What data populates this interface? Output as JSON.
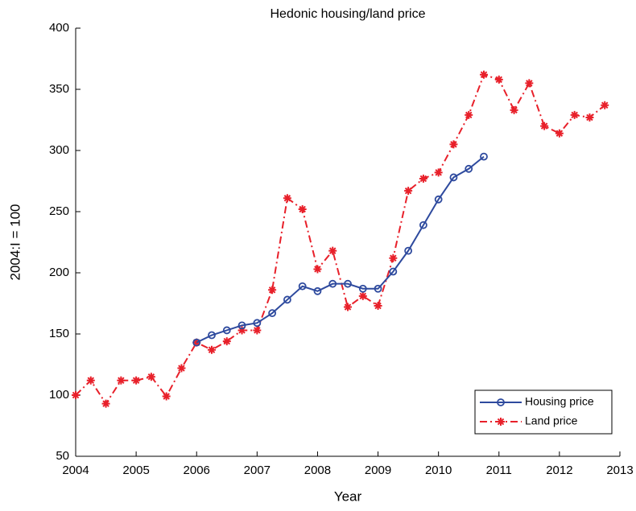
{
  "chart_data": {
    "type": "line",
    "title": "Hedonic housing/land price",
    "x_label": "Year",
    "y_label": "2004:I = 100",
    "xlim": [
      2004,
      2013
    ],
    "xticks": [
      2004,
      2005,
      2006,
      2007,
      2008,
      2009,
      2010,
      2011,
      2012,
      2013
    ],
    "ylim": [
      50,
      400
    ],
    "yticks": [
      50,
      100,
      150,
      200,
      250,
      300,
      350,
      400
    ],
    "legend": "lower right",
    "series": [
      {
        "name": "Housing price",
        "color": "#2e4a9e",
        "marker": "circle",
        "dash": "solid",
        "x": [
          2006,
          2006.25,
          2006.5,
          2006.75,
          2007,
          2007.25,
          2007.5,
          2007.75,
          2008,
          2008.25,
          2008.5,
          2008.75,
          2009,
          2009.25,
          2009.5,
          2009.75,
          2010,
          2010.25,
          2010.5,
          2010.75
        ],
        "values": [
          143,
          149,
          153,
          157,
          159,
          167,
          178,
          189,
          185,
          191,
          191,
          187,
          187,
          201,
          218,
          239,
          260,
          278,
          285,
          295
        ]
      },
      {
        "name": "Land price",
        "color": "#e8202a",
        "marker": "asterisk",
        "dash": "dashdot",
        "x": [
          2004,
          2004.25,
          2004.5,
          2004.75,
          2005,
          2005.25,
          2005.5,
          2005.75,
          2006,
          2006.25,
          2006.5,
          2006.75,
          2007,
          2007.25,
          2007.5,
          2007.75,
          2008,
          2008.25,
          2008.5,
          2008.75,
          2009,
          2009.25,
          2009.5,
          2009.75,
          2010,
          2010.25,
          2010.5,
          2010.75,
          2011,
          2011.25,
          2011.5,
          2011.75,
          2012,
          2012.25,
          2012.5,
          2012.75
        ],
        "values": [
          100,
          112,
          93,
          112,
          112,
          115,
          99,
          122,
          143,
          137,
          144,
          153,
          153,
          186,
          261,
          252,
          203,
          218,
          172,
          181,
          173,
          212,
          267,
          277,
          282,
          305,
          329,
          362,
          358,
          333,
          355,
          320,
          314,
          329,
          327,
          337
        ]
      }
    ]
  }
}
